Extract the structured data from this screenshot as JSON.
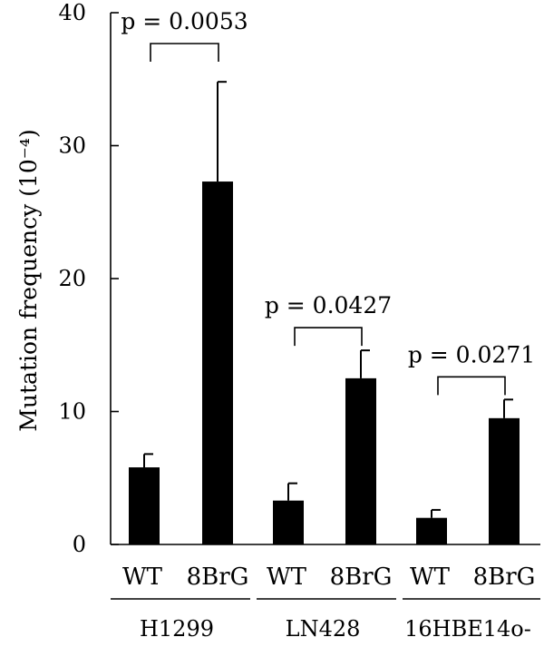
{
  "chart_data": {
    "type": "bar",
    "title": "",
    "ylabel": "Mutation frequency (10⁻⁴)",
    "ylim": [
      0,
      40
    ],
    "yticks": [
      "0",
      "10",
      "20",
      "30",
      "40"
    ],
    "grid": false,
    "bar_color": "#000000",
    "groups": [
      {
        "name": "H1299",
        "bars": [
          {
            "category": "WT",
            "value": 5.8,
            "error": 1.0
          },
          {
            "category": "8BrG",
            "value": 27.3,
            "error": 7.5
          }
        ],
        "p_value": "p = 0.0053"
      },
      {
        "name": "LN428",
        "bars": [
          {
            "category": "WT",
            "value": 3.3,
            "error": 1.3
          },
          {
            "category": "8BrG",
            "value": 12.5,
            "error": 2.1
          }
        ],
        "p_value": "p = 0.0427"
      },
      {
        "name": "16HBE14o-",
        "bars": [
          {
            "category": "WT",
            "value": 2.0,
            "error": 0.6
          },
          {
            "category": "8BrG",
            "value": 9.5,
            "error": 1.4
          }
        ],
        "p_value": "p = 0.0271"
      }
    ]
  }
}
